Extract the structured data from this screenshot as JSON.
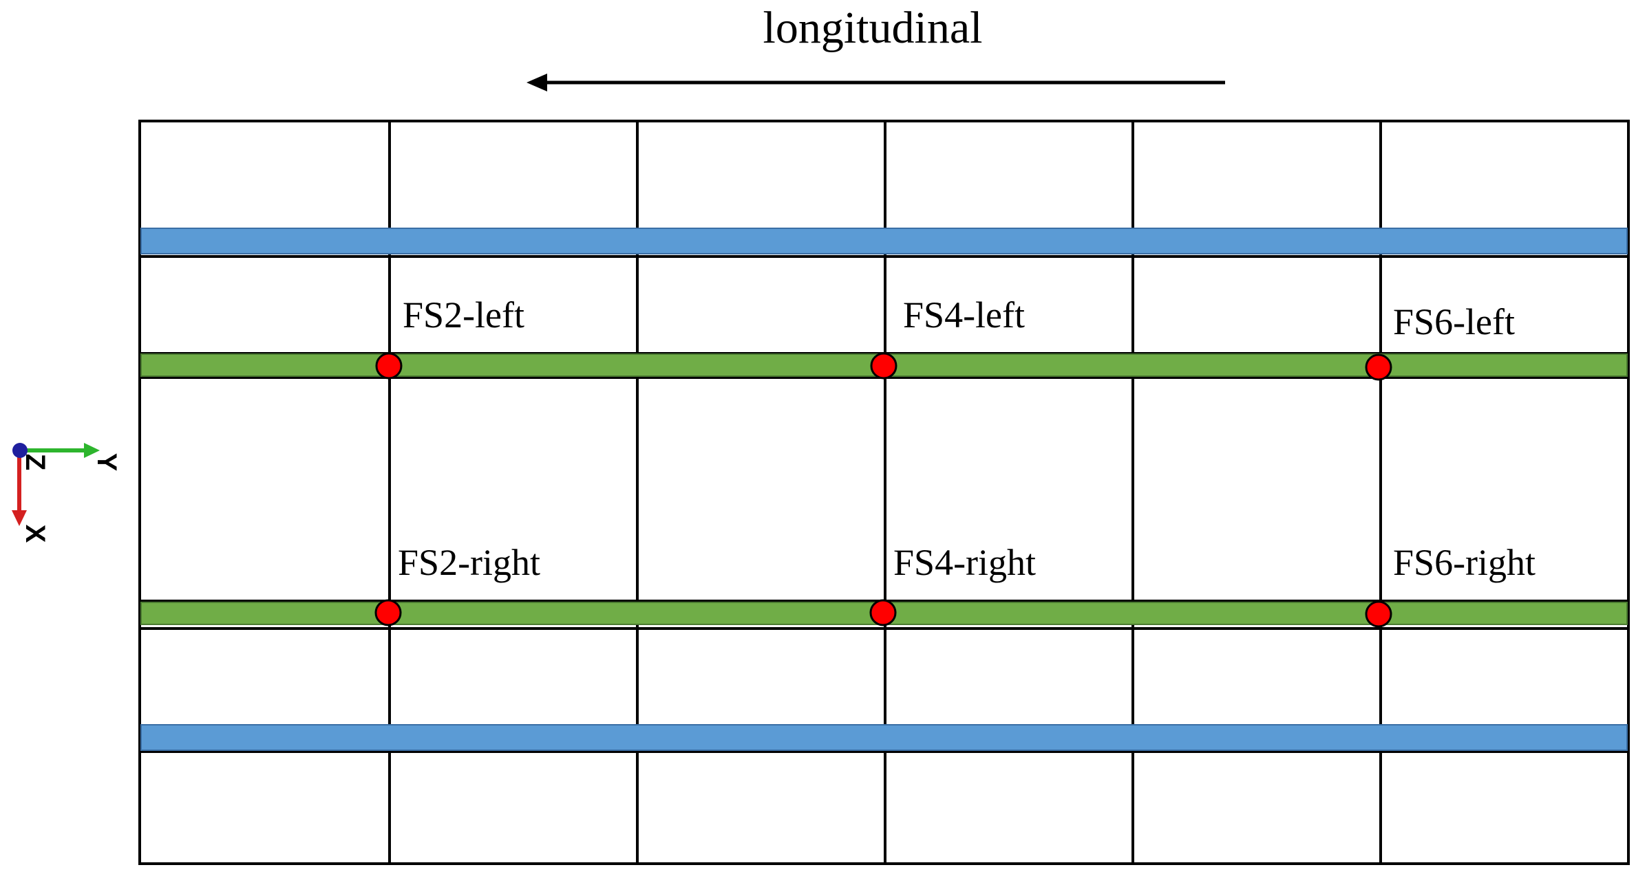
{
  "direction_label": "longitudinal",
  "grid": {
    "columns": 6,
    "line_color": "#000000"
  },
  "strips": [
    {
      "kind": "outer",
      "color": "#5b9bd5"
    },
    {
      "kind": "inner",
      "color": "#70ad47"
    },
    {
      "kind": "inner",
      "color": "#70ad47"
    },
    {
      "kind": "outer",
      "color": "#5b9bd5"
    }
  ],
  "sensor_marker_color": "#ff0000",
  "sensors": [
    {
      "label": "FS2-left"
    },
    {
      "label": "FS4-left"
    },
    {
      "label": "FS6-left"
    },
    {
      "label": "FS2-right"
    },
    {
      "label": "FS4-right"
    },
    {
      "label": "FS6-right"
    }
  ],
  "axis_triad": {
    "axes": [
      {
        "name": "Y",
        "color": "#2db52d"
      },
      {
        "name": "Z",
        "color": "#1f1f9e"
      },
      {
        "name": "X",
        "color": "#d42020"
      }
    ]
  }
}
